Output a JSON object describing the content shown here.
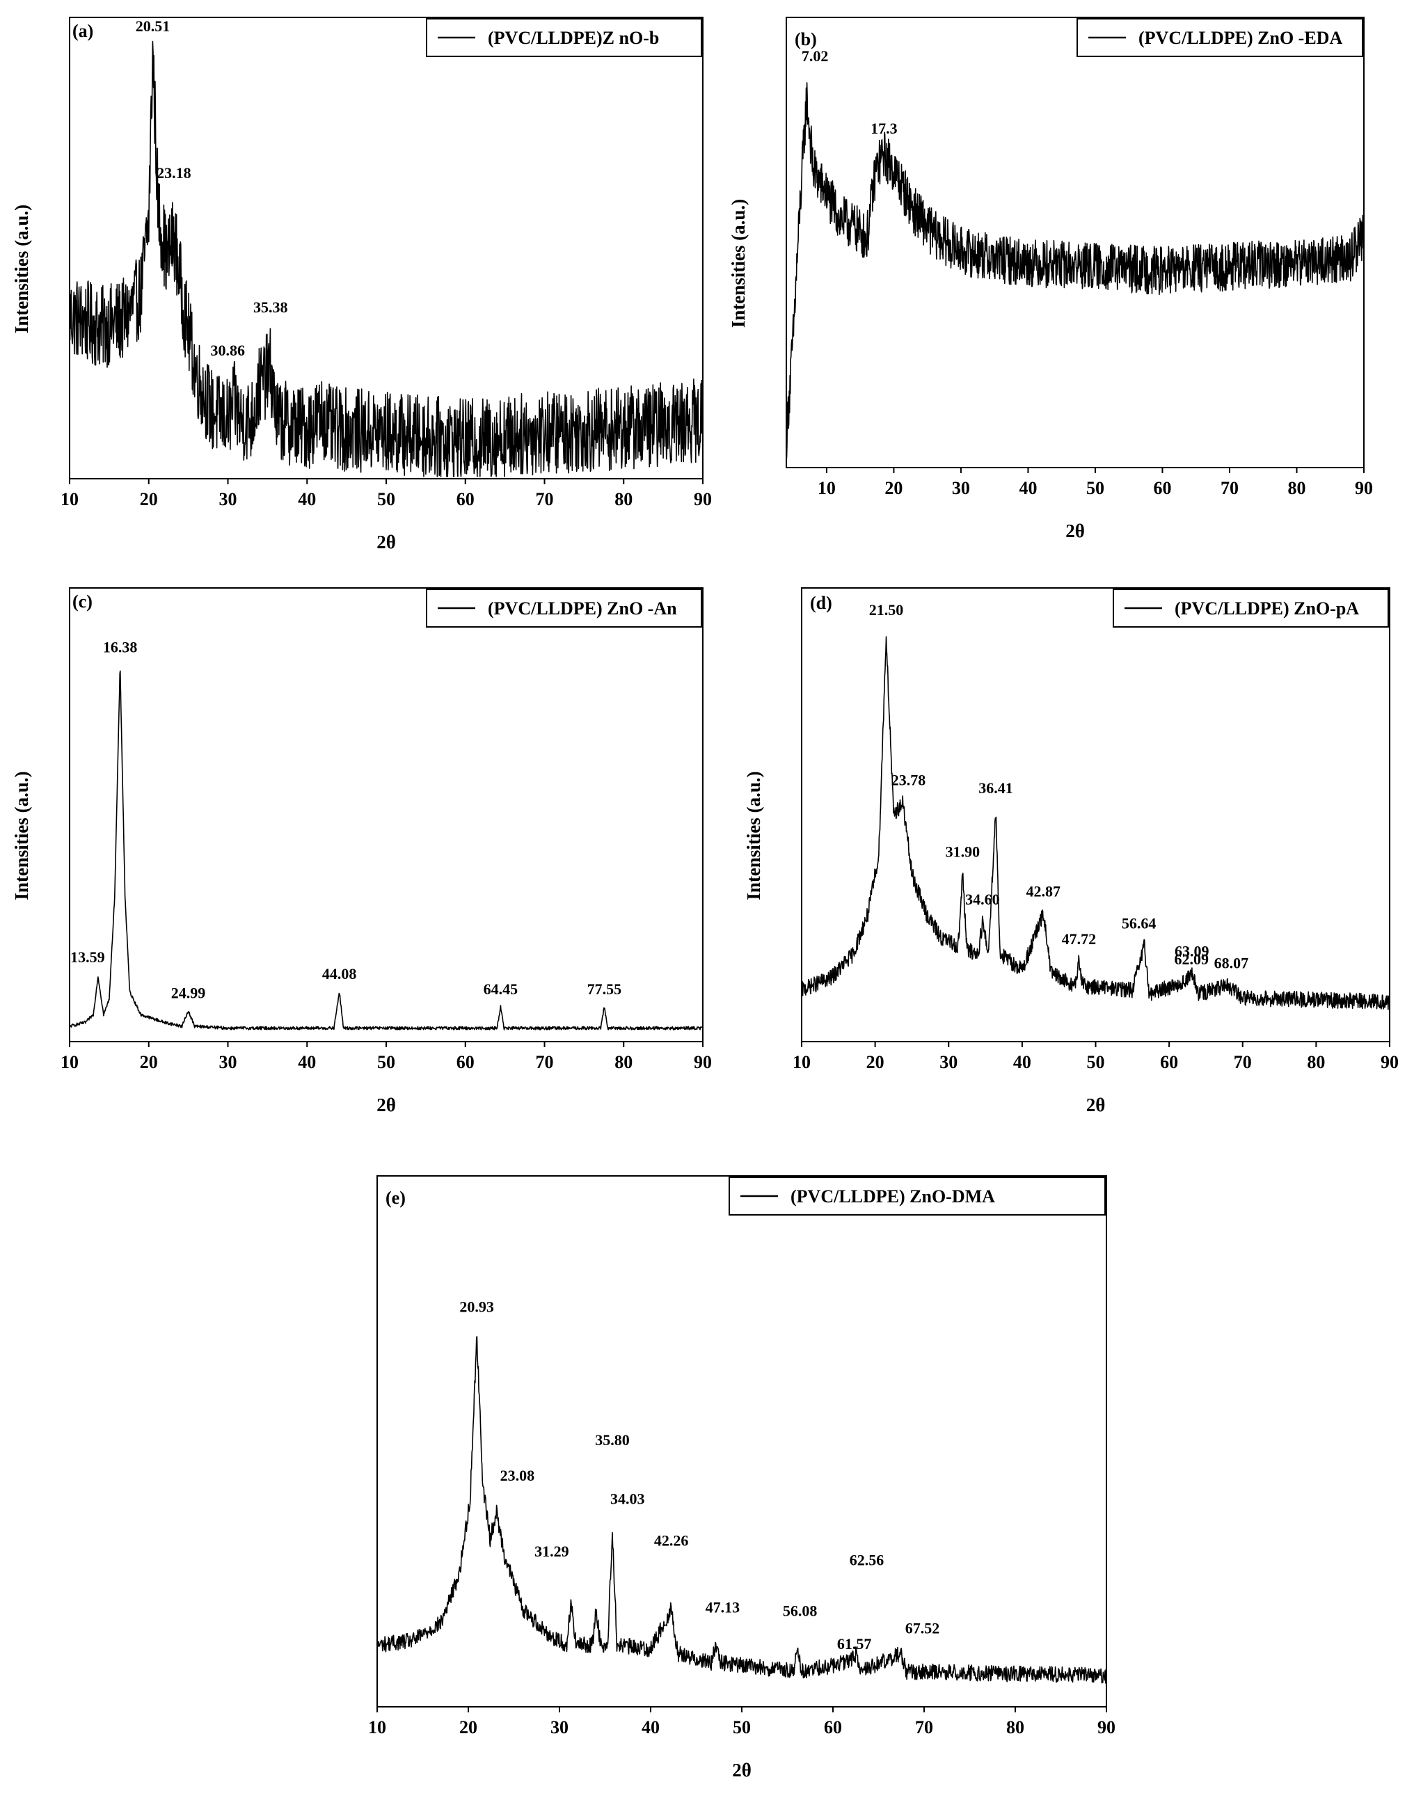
{
  "chart_data": [
    {
      "type": "line",
      "panel": "(a)",
      "xlabel": "2θ",
      "ylabel": "Intensities (a.u.)",
      "xlim": [
        10,
        90
      ],
      "xticks": [
        10,
        20,
        30,
        40,
        50,
        60,
        70,
        80,
        90
      ],
      "legend": "top-right",
      "series": [
        {
          "name": "(PVC/LLDPE)Z nO-b",
          "noise": 0.1,
          "points": [
            [
              10,
              0.37
            ],
            [
              14,
              0.34
            ],
            [
              17,
              0.36
            ],
            [
              19,
              0.42
            ],
            [
              20,
              0.6
            ],
            [
              20.51,
              1.0
            ],
            [
              21.2,
              0.62
            ],
            [
              22.3,
              0.5
            ],
            [
              23.18,
              0.56
            ],
            [
              24.5,
              0.38
            ],
            [
              26,
              0.23
            ],
            [
              28,
              0.14
            ],
            [
              30,
              0.12
            ],
            [
              30.86,
              0.16
            ],
            [
              31.5,
              0.12
            ],
            [
              33,
              0.12
            ],
            [
              34,
              0.2
            ],
            [
              35.38,
              0.24
            ],
            [
              36.2,
              0.12
            ],
            [
              40,
              0.1
            ],
            [
              42,
              0.13
            ],
            [
              43,
              0.1
            ],
            [
              50,
              0.09
            ],
            [
              60,
              0.07
            ],
            [
              70,
              0.09
            ],
            [
              80,
              0.1
            ],
            [
              90,
              0.12
            ]
          ]
        }
      ],
      "annotations": [
        {
          "x": 20.51,
          "text": "20.51"
        },
        {
          "x": 23.18,
          "text": "23.18"
        },
        {
          "x": 30.86,
          "text": "30.86"
        },
        {
          "x": 35.38,
          "text": "35.38"
        }
      ]
    },
    {
      "type": "line",
      "panel": "(b)",
      "xlabel": "2θ",
      "ylabel": "Intensities (a.u.)",
      "xlim": [
        4,
        90
      ],
      "xticks": [
        10,
        20,
        30,
        40,
        50,
        60,
        70,
        80,
        90
      ],
      "legend": "top-right",
      "series": [
        {
          "name": "(PVC/LLDPE) ZnO -EDA",
          "noise": 0.06,
          "points": [
            [
              4,
              0.05
            ],
            [
              5,
              0.3
            ],
            [
              6,
              0.62
            ],
            [
              7.02,
              0.9
            ],
            [
              8,
              0.72
            ],
            [
              10,
              0.66
            ],
            [
              12,
              0.6
            ],
            [
              14,
              0.58
            ],
            [
              16,
              0.55
            ],
            [
              17.3,
              0.72
            ],
            [
              18.5,
              0.76
            ],
            [
              20,
              0.72
            ],
            [
              23,
              0.62
            ],
            [
              26,
              0.56
            ],
            [
              30,
              0.52
            ],
            [
              35,
              0.5
            ],
            [
              40,
              0.49
            ],
            [
              50,
              0.48
            ],
            [
              60,
              0.47
            ],
            [
              70,
              0.48
            ],
            [
              80,
              0.49
            ],
            [
              88,
              0.5
            ],
            [
              90,
              0.56
            ]
          ]
        }
      ],
      "annotations": [
        {
          "x": 7.02,
          "text": "7.02"
        },
        {
          "x": 17.3,
          "text": "17.3"
        }
      ]
    },
    {
      "type": "line",
      "panel": "(c)",
      "xlabel": "2θ",
      "ylabel": "Intensities (a.u.)",
      "xlim": [
        10,
        90
      ],
      "xticks": [
        10,
        20,
        30,
        40,
        50,
        60,
        70,
        80,
        90
      ],
      "legend": "top-right",
      "series": [
        {
          "name": "(PVC/LLDPE) ZnO -An",
          "noise": 0.004,
          "points": [
            [
              10,
              0.01
            ],
            [
              12,
              0.02
            ],
            [
              13,
              0.04
            ],
            [
              13.59,
              0.14
            ],
            [
              14.3,
              0.04
            ],
            [
              15,
              0.08
            ],
            [
              15.7,
              0.35
            ],
            [
              16.38,
              0.95
            ],
            [
              17,
              0.35
            ],
            [
              17.6,
              0.1
            ],
            [
              19,
              0.04
            ],
            [
              22,
              0.02
            ],
            [
              24.2,
              0.01
            ],
            [
              24.99,
              0.05
            ],
            [
              25.8,
              0.01
            ],
            [
              30,
              0.005
            ],
            [
              43.4,
              0.005
            ],
            [
              44.08,
              0.1
            ],
            [
              44.6,
              0.005
            ],
            [
              64,
              0.005
            ],
            [
              64.45,
              0.06
            ],
            [
              64.9,
              0.005
            ],
            [
              77.1,
              0.005
            ],
            [
              77.55,
              0.06
            ],
            [
              78,
              0.005
            ],
            [
              90,
              0.005
            ]
          ]
        }
      ],
      "annotations": [
        {
          "x": 13.59,
          "text": "13.59"
        },
        {
          "x": 16.38,
          "text": "16.38"
        },
        {
          "x": 24.99,
          "text": "24.99"
        },
        {
          "x": 44.08,
          "text": "44.08"
        },
        {
          "x": 64.45,
          "text": "64.45"
        },
        {
          "x": 77.55,
          "text": "77.55"
        }
      ]
    },
    {
      "type": "line",
      "panel": "(d)",
      "xlabel": "2θ",
      "ylabel": "Intensities (a.u.)",
      "xlim": [
        10,
        90
      ],
      "xticks": [
        10,
        20,
        30,
        40,
        50,
        60,
        70,
        80,
        90
      ],
      "legend": "top-right",
      "series": [
        {
          "name": "(PVC/LLDPE) ZnO-pA",
          "noise": 0.02,
          "points": [
            [
              10,
              0.11
            ],
            [
              14,
              0.14
            ],
            [
              17,
              0.2
            ],
            [
              19,
              0.3
            ],
            [
              20.5,
              0.45
            ],
            [
              21.5,
              1.0
            ],
            [
              22.5,
              0.55
            ],
            [
              23.78,
              0.58
            ],
            [
              25,
              0.4
            ],
            [
              27,
              0.3
            ],
            [
              29,
              0.24
            ],
            [
              31.3,
              0.22
            ],
            [
              31.9,
              0.4
            ],
            [
              32.5,
              0.21
            ],
            [
              34,
              0.2
            ],
            [
              34.6,
              0.28
            ],
            [
              35.4,
              0.2
            ],
            [
              36.41,
              0.56
            ],
            [
              37,
              0.2
            ],
            [
              40,
              0.16
            ],
            [
              42.87,
              0.3
            ],
            [
              44,
              0.15
            ],
            [
              47.2,
              0.12
            ],
            [
              47.72,
              0.18
            ],
            [
              48.3,
              0.12
            ],
            [
              55,
              0.11
            ],
            [
              56.64,
              0.22
            ],
            [
              57.3,
              0.1
            ],
            [
              62.09,
              0.13
            ],
            [
              63.09,
              0.15
            ],
            [
              64,
              0.1
            ],
            [
              68.07,
              0.12
            ],
            [
              70,
              0.09
            ],
            [
              90,
              0.08
            ]
          ]
        }
      ],
      "annotations": [
        {
          "x": 21.5,
          "text": "21.50"
        },
        {
          "x": 23.78,
          "text": "23.78"
        },
        {
          "x": 31.9,
          "text": "31.90"
        },
        {
          "x": 34.6,
          "text": "34.60"
        },
        {
          "x": 36.41,
          "text": "36.41"
        },
        {
          "x": 42.87,
          "text": "42.87"
        },
        {
          "x": 47.72,
          "text": "47.72"
        },
        {
          "x": 56.64,
          "text": "56.64"
        },
        {
          "x": 62.09,
          "text": "62.09"
        },
        {
          "x": 63.09,
          "text": "63.09"
        },
        {
          "x": 68.07,
          "text": "68.07"
        }
      ]
    },
    {
      "type": "line",
      "panel": "(e)",
      "xlabel": "2θ",
      "ylabel": "",
      "xlim": [
        10,
        90
      ],
      "xticks": [
        10,
        20,
        30,
        40,
        50,
        60,
        70,
        80,
        90
      ],
      "legend": "top-right",
      "series": [
        {
          "name": "(PVC/LLDPE) ZnO-DMA",
          "noise": 0.018,
          "points": [
            [
              10,
              0.12
            ],
            [
              14,
              0.13
            ],
            [
              17,
              0.17
            ],
            [
              19,
              0.28
            ],
            [
              20.2,
              0.45
            ],
            [
              20.93,
              0.82
            ],
            [
              21.6,
              0.48
            ],
            [
              22.4,
              0.36
            ],
            [
              23.08,
              0.42
            ],
            [
              24,
              0.32
            ],
            [
              26,
              0.2
            ],
            [
              29,
              0.14
            ],
            [
              30.8,
              0.12
            ],
            [
              31.29,
              0.22
            ],
            [
              31.8,
              0.12
            ],
            [
              33.6,
              0.12
            ],
            [
              34.03,
              0.2
            ],
            [
              34.5,
              0.12
            ],
            [
              35.3,
              0.12
            ],
            [
              35.8,
              0.38
            ],
            [
              36.3,
              0.12
            ],
            [
              40,
              0.11
            ],
            [
              42.26,
              0.2
            ],
            [
              43,
              0.1
            ],
            [
              46.7,
              0.08
            ],
            [
              47.13,
              0.12
            ],
            [
              47.6,
              0.08
            ],
            [
              55.7,
              0.06
            ],
            [
              56.08,
              0.12
            ],
            [
              56.5,
              0.06
            ],
            [
              61.57,
              0.08
            ],
            [
              62.56,
              0.1
            ],
            [
              63,
              0.06
            ],
            [
              67.52,
              0.1
            ],
            [
              68,
              0.06
            ],
            [
              90,
              0.05
            ]
          ]
        }
      ],
      "annotations": [
        {
          "x": 20.93,
          "text": "20.93"
        },
        {
          "x": 23.08,
          "text": "23.08"
        },
        {
          "x": 31.29,
          "text": "31.29"
        },
        {
          "x": 35.8,
          "text": "35.80"
        },
        {
          "x": 34.03,
          "text": "34.03"
        },
        {
          "x": 42.26,
          "text": "42.26"
        },
        {
          "x": 47.13,
          "text": "47.13"
        },
        {
          "x": 56.08,
          "text": "56.08"
        },
        {
          "x": 61.57,
          "text": "61.57"
        },
        {
          "x": 62.56,
          "text": "62.56"
        },
        {
          "x": 67.52,
          "text": "67.52"
        }
      ]
    }
  ]
}
